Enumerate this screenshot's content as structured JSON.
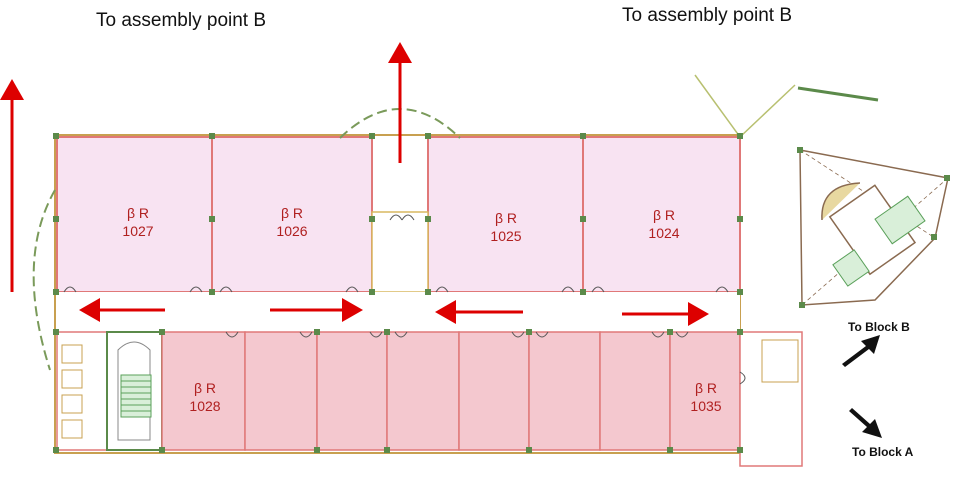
{
  "labels": {
    "assembly_left": "To assembly point B",
    "assembly_right": "To assembly point B",
    "to_block_b": "To Block B",
    "to_block_a": "To Block A"
  },
  "rooms": [
    {
      "prefix": "β R",
      "number": "1027"
    },
    {
      "prefix": "β R",
      "number": "1026"
    },
    {
      "prefix": "β R",
      "number": "1025"
    },
    {
      "prefix": "β R",
      "number": "1024"
    },
    {
      "prefix": "β R",
      "number": "1028"
    },
    {
      "prefix": "β R",
      "number": "1035"
    }
  ],
  "colors": {
    "upper_room_fill": "#f8e3f2",
    "lower_room_fill": "#f4c8cf",
    "wall": "#e07878",
    "arrow": "#dd0000",
    "column": "#5b8a4a",
    "stair": "#5aa05a"
  }
}
